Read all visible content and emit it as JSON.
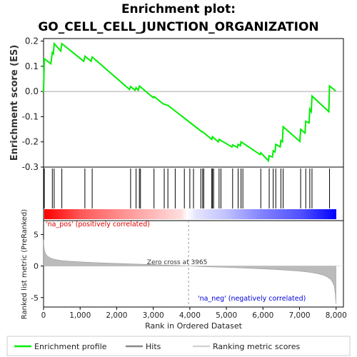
{
  "title_line1": "Enrichment plot:",
  "title_line2": "GO_CELL_CELL_JUNCTION_ORGANIZATION",
  "chart_data": [
    {
      "type": "line",
      "panel": "enrichment-profile",
      "ylabel": "Enrichment score (ES)",
      "xlim": [
        0,
        8200
      ],
      "ylim": [
        -0.3,
        0.21
      ],
      "yticks": [
        0.2,
        0.1,
        0.0,
        -0.1,
        -0.2,
        -0.3
      ],
      "ytick_labels": [
        "0.2",
        "0.1",
        "0.0",
        "-0.1",
        "-0.2",
        "-0.3"
      ],
      "grid": false,
      "series": [
        {
          "name": "Enrichment profile",
          "color": "#00ee00",
          "x": [
            0,
            20,
            200,
            240,
            270,
            290,
            470,
            500,
            1100,
            1130,
            1300,
            1330,
            2350,
            2380,
            2500,
            2530,
            2590,
            2620,
            3000,
            3020,
            3280,
            3300,
            3380,
            3400,
            4330,
            4350,
            4600,
            4620,
            4780,
            4800,
            5150,
            5170,
            5300,
            5320,
            5380,
            5400,
            5920,
            5940,
            6150,
            6170,
            6260,
            6280,
            6330,
            6350,
            6470,
            6490,
            6530,
            6550,
            7010,
            7030,
            7150,
            7170,
            7260,
            7280,
            7320,
            7340,
            7800,
            7820,
            7990
          ],
          "y": [
            -0.003,
            0.13,
            0.11,
            0.155,
            0.15,
            0.19,
            0.16,
            0.19,
            0.12,
            0.14,
            0.12,
            0.137,
            0.008,
            0.02,
            0.005,
            0.015,
            0.005,
            0.022,
            -0.025,
            -0.02,
            -0.05,
            -0.05,
            -0.055,
            -0.055,
            -0.16,
            -0.16,
            -0.19,
            -0.18,
            -0.2,
            -0.19,
            -0.22,
            -0.212,
            -0.222,
            -0.21,
            -0.215,
            -0.2,
            -0.25,
            -0.243,
            -0.275,
            -0.255,
            -0.26,
            -0.235,
            -0.24,
            -0.21,
            -0.22,
            -0.195,
            -0.2,
            -0.14,
            -0.198,
            -0.15,
            -0.165,
            -0.118,
            -0.125,
            -0.07,
            -0.08,
            -0.018,
            -0.08,
            0.022,
            0.002
          ]
        }
      ]
    },
    {
      "type": "scatter",
      "panel": "hits",
      "series": [
        {
          "name": "Hits",
          "color": "#000000",
          "x": [
            20,
            240,
            290,
            500,
            1130,
            1330,
            2380,
            2530,
            2620,
            2650,
            3020,
            3300,
            3400,
            3600,
            3850,
            4000,
            4100,
            4300,
            4350,
            4380,
            4600,
            4620,
            4650,
            4800,
            4850,
            5170,
            5320,
            5400,
            5450,
            5940,
            6170,
            6280,
            6350,
            6490,
            6550,
            7030,
            7170,
            7280,
            7340,
            7820
          ]
        }
      ]
    },
    {
      "type": "area",
      "panel": "ranked-list-metric",
      "ylabel": "Ranked list metric (PreRanked)",
      "xlabel": "Rank in Ordered Dataset",
      "xlim": [
        0,
        8200
      ],
      "ylim": [
        -6.5,
        7.2
      ],
      "xticks": [
        0,
        1000,
        2000,
        3000,
        4000,
        5000,
        6000,
        7000,
        8000
      ],
      "xtick_labels": [
        "0",
        "1,000",
        "2,000",
        "3,000",
        "4,000",
        "5,000",
        "6,000",
        "7,000",
        "8,000"
      ],
      "yticks": [
        5,
        0,
        -5
      ],
      "ytick_labels": [
        "5",
        "0",
        "-5"
      ],
      "series": [
        {
          "name": "Ranking metric scores",
          "color": "#999999",
          "x": [
            0,
            10,
            30,
            60,
            100,
            150,
            200,
            300,
            500,
            800,
            1200,
            1600,
            2000,
            2500,
            3000,
            3500,
            3965,
            4500,
            5000,
            5500,
            6000,
            6500,
            7000,
            7300,
            7500,
            7650,
            7750,
            7850,
            7900,
            7950,
            7980,
            7995
          ],
          "y": [
            4.2,
            3.0,
            2.3,
            1.9,
            1.6,
            1.4,
            1.25,
            1.05,
            0.85,
            0.72,
            0.6,
            0.5,
            0.42,
            0.32,
            0.22,
            0.12,
            0.0,
            -0.12,
            -0.22,
            -0.33,
            -0.45,
            -0.6,
            -0.8,
            -1.0,
            -1.2,
            -1.45,
            -1.7,
            -2.1,
            -2.5,
            -3.2,
            -4.5,
            -6.0
          ]
        }
      ],
      "annotations": [
        {
          "text": "Zero cross at 3965",
          "x": 3965
        },
        {
          "text": "'na_pos' (positively correlated)",
          "side": "left"
        },
        {
          "text": "'na_neg' (negatively correlated)",
          "side": "right"
        }
      ]
    }
  ],
  "legend": {
    "placement": "bottom",
    "items": [
      {
        "label": "Enrichment profile",
        "color": "#00ee00"
      },
      {
        "label": "Hits",
        "color": "#888888"
      },
      {
        "label": "Ranking metric scores",
        "color": "#d3d3d3"
      }
    ]
  },
  "colors": {
    "positive_red": "#ff0000",
    "negative_blue": "#0000ff",
    "hit_line": "#000000"
  }
}
